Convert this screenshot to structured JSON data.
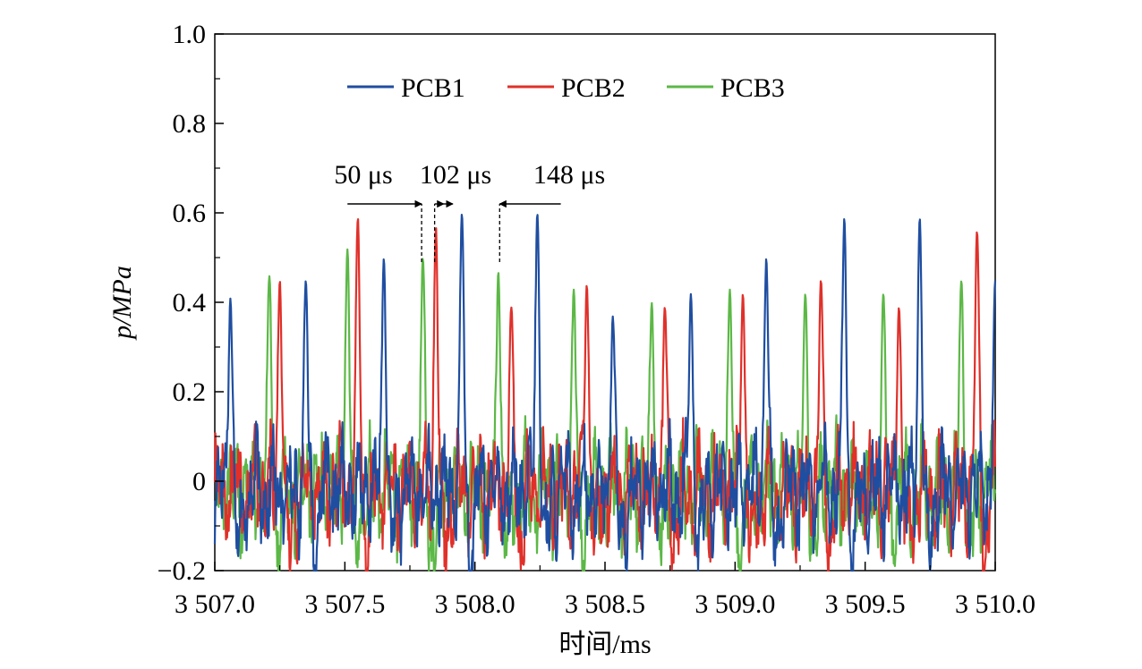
{
  "chart_data": {
    "type": "line",
    "title": "",
    "xlabel": "时间/ms",
    "ylabel": "p/MPa",
    "xlim": [
      3507.0,
      3510.0
    ],
    "ylim": [
      -0.2,
      1.0
    ],
    "x_ticks": [
      3507.0,
      3507.5,
      3508.0,
      3508.5,
      3509.0,
      3509.5,
      3510.0
    ],
    "x_tick_labels": [
      "3 507.0",
      "3 507.5",
      "3 508.0",
      "3 508.5",
      "3 509.0",
      "3 509.5",
      "3 510.0"
    ],
    "y_ticks": [
      -0.2,
      0,
      0.2,
      0.4,
      0.6,
      0.8,
      1.0
    ],
    "y_tick_labels": [
      "−0.2",
      "0",
      "0.2",
      "0.4",
      "0.6",
      "0.8",
      "1.0"
    ],
    "grid": false,
    "legend_position": "top-center",
    "series": [
      {
        "name": "PCB1",
        "color": "#1f4ea1",
        "peaks": [
          {
            "x": 3507.06,
            "y": 0.41
          },
          {
            "x": 3507.35,
            "y": 0.45
          },
          {
            "x": 3507.65,
            "y": 0.5
          },
          {
            "x": 3507.95,
            "y": 0.6
          },
          {
            "x": 3508.24,
            "y": 0.6
          },
          {
            "x": 3508.53,
            "y": 0.37
          },
          {
            "x": 3508.83,
            "y": 0.42
          },
          {
            "x": 3509.12,
            "y": 0.5
          },
          {
            "x": 3509.42,
            "y": 0.59
          },
          {
            "x": 3509.71,
            "y": 0.59
          },
          {
            "x": 3510.0,
            "y": 0.45
          }
        ],
        "baseline_min": -0.2
      },
      {
        "name": "PCB2",
        "color": "#e0302a",
        "peaks": [
          {
            "x": 3507.25,
            "y": 0.45
          },
          {
            "x": 3507.55,
            "y": 0.59
          },
          {
            "x": 3507.85,
            "y": 0.57
          },
          {
            "x": 3508.14,
            "y": 0.39
          },
          {
            "x": 3508.43,
            "y": 0.44
          },
          {
            "x": 3508.73,
            "y": 0.39
          },
          {
            "x": 3509.03,
            "y": 0.42
          },
          {
            "x": 3509.33,
            "y": 0.45
          },
          {
            "x": 3509.63,
            "y": 0.39
          },
          {
            "x": 3509.93,
            "y": 0.56
          }
        ],
        "baseline_min": -0.2
      },
      {
        "name": "PCB3",
        "color": "#5cb846",
        "peaks": [
          {
            "x": 3507.21,
            "y": 0.46
          },
          {
            "x": 3507.51,
            "y": 0.52
          },
          {
            "x": 3507.8,
            "y": 0.5
          },
          {
            "x": 3508.09,
            "y": 0.47
          },
          {
            "x": 3508.38,
            "y": 0.43
          },
          {
            "x": 3508.68,
            "y": 0.4
          },
          {
            "x": 3508.98,
            "y": 0.43
          },
          {
            "x": 3509.27,
            "y": 0.42
          },
          {
            "x": 3509.57,
            "y": 0.42
          },
          {
            "x": 3509.87,
            "y": 0.45
          }
        ],
        "baseline_min": -0.2
      }
    ],
    "annotations": [
      {
        "label": "50 μs",
        "text_x": 3507.55,
        "text_y": 0.675
      },
      {
        "label": "102 μs",
        "text_x": 3507.89,
        "text_y": 0.675
      },
      {
        "label": "148 μs",
        "text_x": 3508.25,
        "text_y": 0.675
      }
    ],
    "markers": {
      "arrow_y": 0.62,
      "dashed_x": [
        3507.795,
        3507.845,
        3508.095
      ],
      "dashed_y_range": [
        0.49,
        0.62
      ],
      "arrows": [
        {
          "from": 3507.51,
          "to": 3507.795
        },
        {
          "from": 3507.845,
          "to": 3507.88
        },
        {
          "from": 3507.88,
          "to": 3507.915
        },
        {
          "from": 3508.33,
          "to": 3508.095
        }
      ]
    }
  }
}
